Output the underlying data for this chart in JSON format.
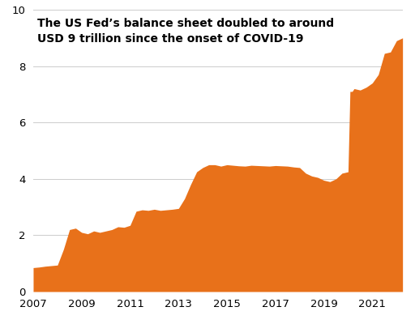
{
  "title_line1": "The US Fed’s balance sheet doubled to around",
  "title_line2": "USD 9 trillion since the onset of COVID-19",
  "fill_color": "#E8711A",
  "background_color": "#ffffff",
  "ylim": [
    0,
    10
  ],
  "yticks": [
    0,
    2,
    4,
    6,
    8,
    10
  ],
  "xlim_start": 2007.0,
  "xlim_end": 2022.25,
  "xtick_years": [
    2007,
    2009,
    2011,
    2013,
    2015,
    2017,
    2019,
    2021
  ],
  "years": [
    2007.0,
    2007.25,
    2007.5,
    2007.75,
    2008.0,
    2008.25,
    2008.5,
    2008.75,
    2009.0,
    2009.25,
    2009.5,
    2009.75,
    2010.0,
    2010.25,
    2010.5,
    2010.75,
    2011.0,
    2011.25,
    2011.5,
    2011.75,
    2012.0,
    2012.25,
    2012.5,
    2012.75,
    2013.0,
    2013.25,
    2013.5,
    2013.75,
    2014.0,
    2014.25,
    2014.5,
    2014.75,
    2015.0,
    2015.25,
    2015.5,
    2015.75,
    2016.0,
    2016.25,
    2016.5,
    2016.75,
    2017.0,
    2017.25,
    2017.5,
    2017.75,
    2018.0,
    2018.25,
    2018.5,
    2018.75,
    2019.0,
    2019.25,
    2019.5,
    2019.75,
    2020.0,
    2020.08,
    2020.17,
    2020.25,
    2020.5,
    2020.75,
    2021.0,
    2021.25,
    2021.5,
    2021.75,
    2022.0,
    2022.25
  ],
  "values": [
    0.85,
    0.87,
    0.9,
    0.92,
    0.94,
    1.5,
    2.2,
    2.25,
    2.1,
    2.05,
    2.15,
    2.1,
    2.15,
    2.2,
    2.3,
    2.28,
    2.35,
    2.85,
    2.9,
    2.88,
    2.92,
    2.88,
    2.9,
    2.92,
    2.95,
    3.3,
    3.8,
    4.25,
    4.4,
    4.5,
    4.5,
    4.45,
    4.5,
    4.48,
    4.46,
    4.45,
    4.48,
    4.47,
    4.46,
    4.45,
    4.47,
    4.46,
    4.45,
    4.42,
    4.4,
    4.2,
    4.1,
    4.05,
    3.95,
    3.9,
    4.0,
    4.2,
    4.25,
    7.1,
    7.1,
    7.2,
    7.15,
    7.25,
    7.4,
    7.7,
    8.45,
    8.5,
    8.9,
    9.0
  ]
}
